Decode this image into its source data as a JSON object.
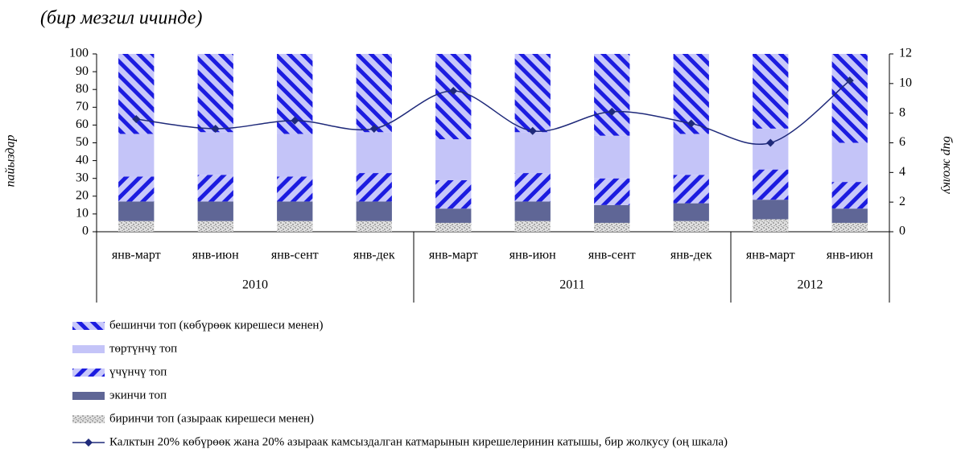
{
  "chart_data": {
    "type": "bar",
    "stacked": true,
    "title": "(бир мезгил ичинде)",
    "y_label": "пайыздар",
    "y2_label": "бир жолку",
    "categories": [
      "янв-март",
      "янв-июн",
      "янв-сент",
      "янв-дек",
      "янв-март",
      "янв-июн",
      "янв-сент",
      "янв-дек",
      "янв-март",
      "янв-июн"
    ],
    "groups": [
      {
        "label": "2010",
        "count": 4
      },
      {
        "label": "2011",
        "count": 4
      },
      {
        "label": "2012",
        "count": 2
      }
    ],
    "series": [
      {
        "name": "биринчи топ (азыраак кирешеси менен)",
        "color": "#a8a8a8",
        "pattern": "speckle",
        "values": [
          6,
          6,
          6,
          6,
          5,
          6,
          5,
          6,
          7,
          5
        ]
      },
      {
        "name": "экинчи топ",
        "color": "#5f6696",
        "pattern": "solid",
        "values": [
          11,
          11,
          11,
          11,
          8,
          11,
          10,
          10,
          11,
          8
        ]
      },
      {
        "name": "үчүнчү топ",
        "color": "#1c1ce0",
        "pattern": "diag-up",
        "values": [
          14,
          15,
          14,
          16,
          16,
          16,
          15,
          16,
          17,
          15
        ]
      },
      {
        "name": "төртүнчү топ",
        "color": "#c4c4f8",
        "pattern": "solid",
        "values": [
          24,
          24,
          24,
          23,
          23,
          23,
          24,
          23,
          23,
          22
        ]
      },
      {
        "name": "бешинчи топ (көбүрөөк кирешеси менен)",
        "color": "#1c1ce0",
        "pattern": "diag-down",
        "values": [
          45,
          44,
          45,
          44,
          48,
          44,
          46,
          45,
          42,
          50
        ]
      },
      {
        "name": "Калктын 20% көбүрөөк жана 20% азыраак камсыздалган катмарынын кирешелеринин катышы, бир жолкусу (оң шкала)",
        "color": "#1f2a7a",
        "type": "line",
        "axis": "y2",
        "values": [
          7.6,
          6.95,
          7.5,
          6.95,
          9.5,
          6.8,
          8.1,
          7.3,
          6.0,
          10.2
        ]
      }
    ],
    "ylim": [
      0,
      100
    ],
    "yticks": [
      0,
      10,
      20,
      30,
      40,
      50,
      60,
      70,
      80,
      90,
      100
    ],
    "y2lim": [
      0,
      12
    ],
    "y2ticks": [
      0,
      2,
      4,
      6,
      8,
      10,
      12
    ],
    "grid": false
  }
}
